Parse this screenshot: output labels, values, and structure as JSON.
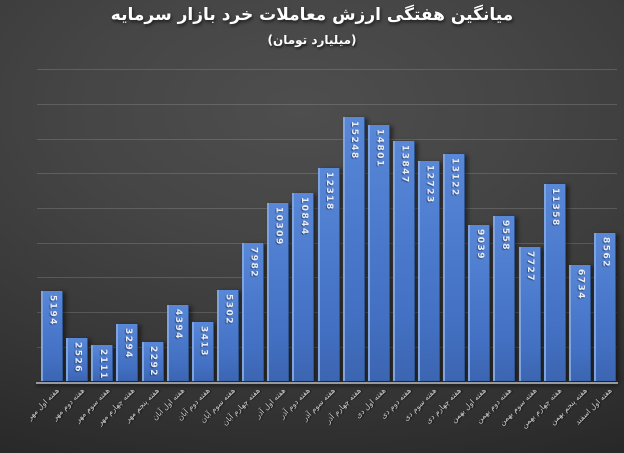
{
  "chart_data": {
    "type": "bar",
    "title": "میانگین هفتگی ارزش معاملات خرد بازار سرمایه",
    "subtitle": "(میلیارد تومان)",
    "categories": [
      "هفته اول مهر",
      "هفته دوم مهر",
      "هفته سوم مهر",
      "هفته چهارم مهر",
      "هفته پنجم مهر",
      "هفته اول آبان",
      "هفته دوم آبان",
      "هفته سوم آبان",
      "هفته چهارم آبان",
      "هفته اول آذر",
      "هفته دوم آذر",
      "هفته سوم آذر",
      "هفته چهارم آذر",
      "هفته اول دی",
      "هفته دوم دی",
      "هفته سوم دی",
      "هفته چهارم دی",
      "هفته اول بهمن",
      "هفته دوم بهمن",
      "هفته سوم بهمن",
      "هفته چهارم بهمن",
      "هفته پنجم بهمن",
      "هفته اول اسفند"
    ],
    "values": [
      5194,
      2526,
      2111,
      3294,
      2292,
      4394,
      3413,
      5302,
      7982,
      10309,
      10844,
      12318,
      15248,
      14801,
      13847,
      12723,
      13122,
      9039,
      9558,
      7727,
      11358,
      6734,
      8562
    ],
    "ylim": [
      0,
      18000
    ],
    "gridline_step": 2000,
    "grid": "horizontal",
    "legend": "none",
    "y_axis_tick_labels": "none",
    "data_label_style": "inside-end vertical",
    "colors": {
      "bar": "#4673c6",
      "bar_highlight": "#7ea3de",
      "gridline": "#5c5c5c",
      "baseline": "#97999c",
      "title_text": "#ffffff",
      "category_text": "#cccccc",
      "value_text": "#e9edf5",
      "background": "#333333"
    }
  }
}
